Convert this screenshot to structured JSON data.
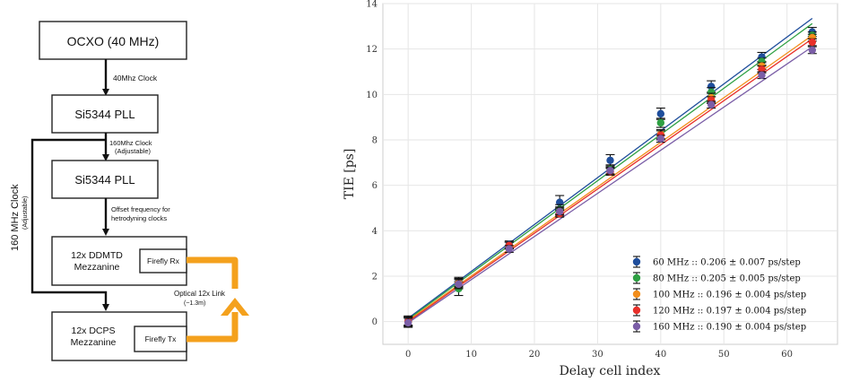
{
  "diagram": {
    "blocks": {
      "ocxo": "OCXO (40 MHz)",
      "pll1": "Si5344 PLL",
      "pll2": "Si5344 PLL",
      "ddmtd_line1": "12x DDMTD",
      "ddmtd_line2": "Mezzanine",
      "dcps_line1": "12x DCPS",
      "dcps_line2": "Mezzanine",
      "firefly_rx": "Firefly Rx",
      "firefly_tx": "Firefly Tx"
    },
    "labels": {
      "clk40": "40Mhz Clock",
      "clk160_line1": "160Mhz Clock",
      "clk160_line2": "(Adjustable)",
      "offset_line1": "Offset frequency for",
      "offset_line2": "hetrodyning clocks",
      "optical_line1": "Optical 12x Link",
      "optical_line2": "(~1.3m)",
      "side_line1": "160 MHz Clock",
      "side_line2": "(Adjustable)"
    },
    "colors": {
      "optical_link": "#f4a11d"
    }
  },
  "chart_data": {
    "type": "scatter",
    "xlabel": "Delay cell index",
    "ylabel": "TIE [ps]",
    "xlim": [
      -4,
      68
    ],
    "ylim": [
      -1,
      14
    ],
    "xticks": [
      0,
      10,
      20,
      30,
      40,
      50,
      60
    ],
    "yticks": [
      0,
      2,
      4,
      6,
      8,
      10,
      12,
      14
    ],
    "grid": true,
    "legend_position": "bottom-right",
    "x": [
      0,
      8,
      16,
      24,
      32,
      40,
      48,
      56,
      64
    ],
    "series": [
      {
        "name": "60 MHz :: 0.206 ± 0.007 ps/step",
        "color": "#1f4e9c",
        "values": [
          0.05,
          1.75,
          3.4,
          5.25,
          7.1,
          9.15,
          10.35,
          11.65,
          12.75
        ],
        "errors": [
          0.2,
          0.2,
          0.15,
          0.3,
          0.25,
          0.25,
          0.25,
          0.2,
          0.2
        ],
        "fit": [
          0.15,
          13.35
        ]
      },
      {
        "name": "80 MHz :: 0.205 ± 0.005 ps/step",
        "color": "#2ea043",
        "values": [
          0.0,
          1.45,
          3.35,
          4.95,
          6.7,
          8.75,
          10.1,
          11.45,
          12.6
        ],
        "errors": [
          0.2,
          0.3,
          0.15,
          0.2,
          0.2,
          0.2,
          0.2,
          0.15,
          0.15
        ],
        "fit": [
          0.1,
          13.12
        ]
      },
      {
        "name": "100 MHz :: 0.196 ± 0.004 ps/step",
        "color": "#f28e1c",
        "values": [
          0.0,
          1.7,
          3.35,
          4.85,
          6.6,
          8.25,
          9.85,
          11.25,
          12.5
        ],
        "errors": [
          0.2,
          0.2,
          0.15,
          0.2,
          0.15,
          0.2,
          0.2,
          0.15,
          0.15
        ],
        "fit": [
          0.05,
          12.6
        ]
      },
      {
        "name": "120 MHz :: 0.197 ± 0.004 ps/step",
        "color": "#e8302a",
        "values": [
          0.0,
          1.65,
          3.35,
          4.75,
          6.6,
          8.2,
          9.75,
          11.1,
          12.3
        ],
        "errors": [
          0.2,
          0.2,
          0.15,
          0.15,
          0.15,
          0.2,
          0.15,
          0.15,
          0.15
        ],
        "fit": [
          0.0,
          12.45
        ]
      },
      {
        "name": "160 MHz :: 0.190 ± 0.004 ps/step",
        "color": "#7b5ea7",
        "values": [
          -0.05,
          1.65,
          3.2,
          4.85,
          6.65,
          8.05,
          9.55,
          10.85,
          11.95
        ],
        "errors": [
          0.2,
          0.2,
          0.15,
          0.15,
          0.15,
          0.15,
          0.15,
          0.15,
          0.15
        ],
        "fit": [
          -0.05,
          12.1
        ]
      }
    ]
  }
}
